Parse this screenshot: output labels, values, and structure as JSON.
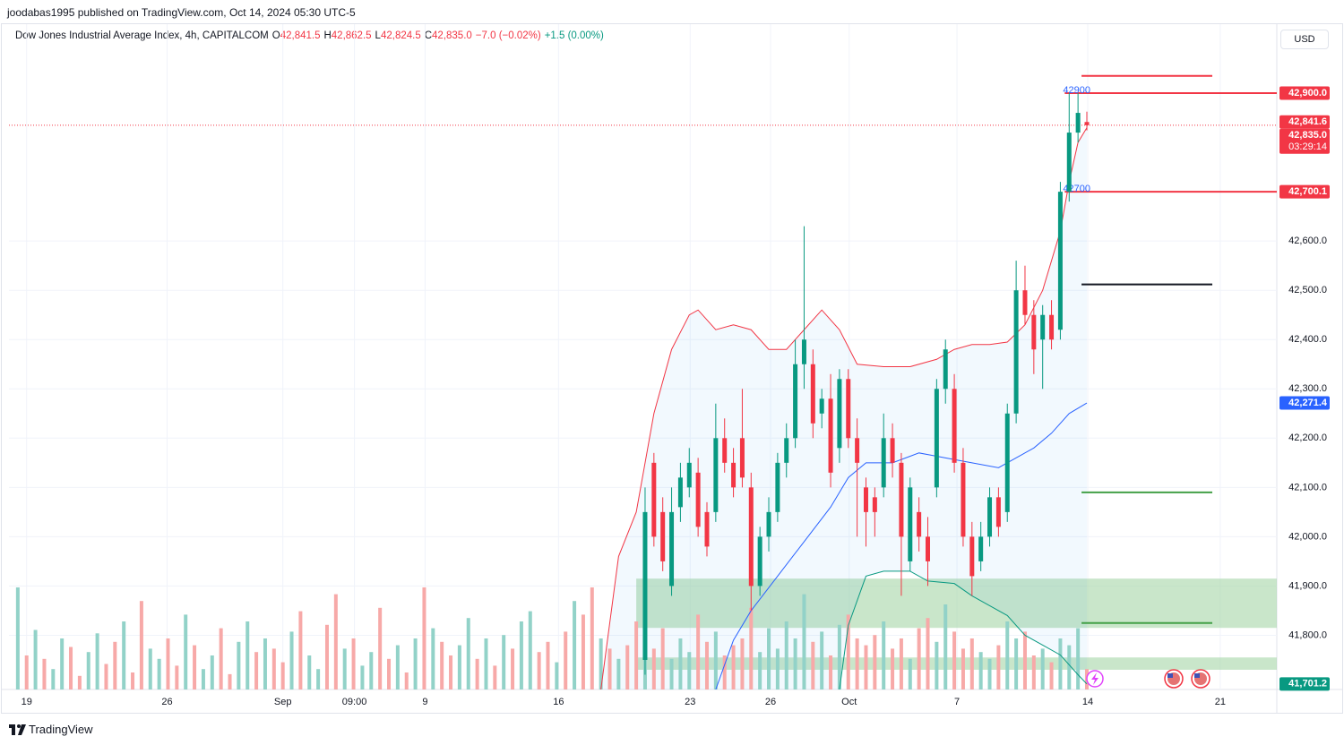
{
  "header": {
    "published": "joodabas1995 published on TradingView.com, Oct 14, 2024 05:30 UTC-5",
    "currency": "USD",
    "brand": "TradingView"
  },
  "legend": {
    "symbol": "Dow Jones Industrial Average Index, 4h, CAPITALCOM",
    "ohlc": [
      {
        "key": "O",
        "value": "42,841.5"
      },
      {
        "key": "H",
        "value": "42,862.5"
      },
      {
        "key": "L",
        "value": "42,824.5"
      },
      {
        "key": "C",
        "value": "42,835.0"
      }
    ],
    "change": "−7.0 (−0.02%)",
    "volume_change": "+1.5 (0.00%)"
  },
  "chart_data": {
    "type": "candlestick",
    "xlim": [
      -1,
      142.5
    ],
    "ylim": [
      41690,
      43040
    ],
    "xticks": [
      {
        "value": 1,
        "label": "19"
      },
      {
        "value": 16.9,
        "label": "26"
      },
      {
        "value": 30,
        "label": "Sep"
      },
      {
        "value": 38.1,
        "label": "09:00"
      },
      {
        "value": 46.1,
        "label": "9"
      },
      {
        "value": 61.2,
        "label": "16"
      },
      {
        "value": 76.1,
        "label": "23"
      },
      {
        "value": 85.2,
        "label": "26"
      },
      {
        "value": 94.1,
        "label": "Oct"
      },
      {
        "value": 106.3,
        "label": "7"
      },
      {
        "value": 121.1,
        "label": "14"
      },
      {
        "value": 136.1,
        "label": "21"
      }
    ],
    "yticks": [
      {
        "value": 41800,
        "label": "41,800.0"
      },
      {
        "value": 41900,
        "label": "41,900.0"
      },
      {
        "value": 42000,
        "label": "42,000.0"
      },
      {
        "value": 42100,
        "label": "42,100.0"
      },
      {
        "value": 42200,
        "label": "42,200.0"
      },
      {
        "value": 42300,
        "label": "42,300.0"
      },
      {
        "value": 42400,
        "label": "42,400.0"
      },
      {
        "value": 42500,
        "label": "42,500.0"
      },
      {
        "value": 42600,
        "label": "42,600.0"
      }
    ],
    "grid": true,
    "up_color": "#089981",
    "down_color": "#f23645",
    "volume_up_color": "#92d2c8",
    "volume_down_color": "#f7a9a8",
    "candles": [
      {
        "x": 71,
        "o": 41750,
        "h": 42100,
        "l": 41720,
        "c": 42050
      },
      {
        "x": 72,
        "o": 42150,
        "h": 42170,
        "l": 41980,
        "c": 42000
      },
      {
        "x": 73,
        "o": 42050,
        "h": 42080,
        "l": 41930,
        "c": 41950
      },
      {
        "x": 74,
        "o": 41900,
        "h": 42100,
        "l": 41880,
        "c": 42050
      },
      {
        "x": 75,
        "o": 42060,
        "h": 42150,
        "l": 42030,
        "c": 42120
      },
      {
        "x": 76,
        "o": 42100,
        "h": 42180,
        "l": 42080,
        "c": 42150
      },
      {
        "x": 77,
        "o": 42130,
        "h": 42160,
        "l": 42000,
        "c": 42020
      },
      {
        "x": 78,
        "o": 42050,
        "h": 42070,
        "l": 41960,
        "c": 41980
      },
      {
        "x": 79,
        "o": 42050,
        "h": 42270,
        "l": 42030,
        "c": 42200
      },
      {
        "x": 80,
        "o": 42200,
        "h": 42240,
        "l": 42130,
        "c": 42150
      },
      {
        "x": 81,
        "o": 42150,
        "h": 42180,
        "l": 42080,
        "c": 42100
      },
      {
        "x": 82,
        "o": 42200,
        "h": 42300,
        "l": 42100,
        "c": 42120
      },
      {
        "x": 83,
        "o": 42100,
        "h": 42130,
        "l": 41850,
        "c": 41900
      },
      {
        "x": 84,
        "o": 41900,
        "h": 42020,
        "l": 41880,
        "c": 42000
      },
      {
        "x": 85,
        "o": 42000,
        "h": 42080,
        "l": 41970,
        "c": 42050
      },
      {
        "x": 86,
        "o": 42050,
        "h": 42170,
        "l": 42030,
        "c": 42150
      },
      {
        "x": 87,
        "o": 42150,
        "h": 42230,
        "l": 42120,
        "c": 42200
      },
      {
        "x": 88,
        "o": 42200,
        "h": 42400,
        "l": 42180,
        "c": 42350
      },
      {
        "x": 89,
        "o": 42350,
        "h": 42630,
        "l": 42300,
        "c": 42400
      },
      {
        "x": 90,
        "o": 42350,
        "h": 42380,
        "l": 42200,
        "c": 42230
      },
      {
        "x": 91,
        "o": 42250,
        "h": 42300,
        "l": 42220,
        "c": 42280
      },
      {
        "x": 92,
        "o": 42280,
        "h": 42330,
        "l": 42100,
        "c": 42130
      },
      {
        "x": 93,
        "o": 42180,
        "h": 42340,
        "l": 42150,
        "c": 42320
      },
      {
        "x": 94,
        "o": 42320,
        "h": 42340,
        "l": 42180,
        "c": 42200
      },
      {
        "x": 95,
        "o": 42200,
        "h": 42240,
        "l": 42000,
        "c": 42150
      },
      {
        "x": 96,
        "o": 42100,
        "h": 42120,
        "l": 41980,
        "c": 42050
      },
      {
        "x": 97,
        "o": 42080,
        "h": 42100,
        "l": 42000,
        "c": 42050
      },
      {
        "x": 98,
        "o": 42100,
        "h": 42250,
        "l": 42080,
        "c": 42200
      },
      {
        "x": 99,
        "o": 42200,
        "h": 42230,
        "l": 42120,
        "c": 42150
      },
      {
        "x": 100,
        "o": 42150,
        "h": 42170,
        "l": 41880,
        "c": 42000
      },
      {
        "x": 101,
        "o": 41950,
        "h": 42120,
        "l": 41930,
        "c": 42100
      },
      {
        "x": 102,
        "o": 42050,
        "h": 42080,
        "l": 41970,
        "c": 42000
      },
      {
        "x": 103,
        "o": 42000,
        "h": 42040,
        "l": 41900,
        "c": 41950
      },
      {
        "x": 104,
        "o": 42100,
        "h": 42320,
        "l": 42080,
        "c": 42300
      },
      {
        "x": 105,
        "o": 42300,
        "h": 42400,
        "l": 42270,
        "c": 42380
      },
      {
        "x": 106,
        "o": 42300,
        "h": 42330,
        "l": 42130,
        "c": 42150
      },
      {
        "x": 107,
        "o": 42150,
        "h": 42180,
        "l": 41980,
        "c": 42000
      },
      {
        "x": 108,
        "o": 42000,
        "h": 42030,
        "l": 41880,
        "c": 41920
      },
      {
        "x": 109,
        "o": 41950,
        "h": 42030,
        "l": 41930,
        "c": 42000
      },
      {
        "x": 110,
        "o": 42000,
        "h": 42100,
        "l": 41980,
        "c": 42080
      },
      {
        "x": 111,
        "o": 42080,
        "h": 42100,
        "l": 42000,
        "c": 42020
      },
      {
        "x": 112,
        "o": 42050,
        "h": 42270,
        "l": 42030,
        "c": 42250
      },
      {
        "x": 113,
        "o": 42250,
        "h": 42560,
        "l": 42230,
        "c": 42500
      },
      {
        "x": 114,
        "o": 42500,
        "h": 42550,
        "l": 42430,
        "c": 42450
      },
      {
        "x": 115,
        "o": 42450,
        "h": 42480,
        "l": 42330,
        "c": 42380
      },
      {
        "x": 116,
        "o": 42400,
        "h": 42470,
        "l": 42300,
        "c": 42450
      },
      {
        "x": 117,
        "o": 42450,
        "h": 42480,
        "l": 42380,
        "c": 42400
      },
      {
        "x": 118,
        "o": 42420,
        "h": 42720,
        "l": 42400,
        "c": 42700
      },
      {
        "x": 119,
        "o": 42700,
        "h": 42900,
        "l": 42680,
        "c": 42820
      },
      {
        "x": 120,
        "o": 42820,
        "h": 42900,
        "l": 42800,
        "c": 42860
      },
      {
        "x": 121,
        "o": 42841.5,
        "h": 42862.5,
        "l": 42824.5,
        "c": 42835
      }
    ],
    "volume_lim": [
      0,
      100
    ],
    "volume": [
      60,
      20,
      35,
      18,
      12,
      30,
      25,
      8,
      22,
      33,
      15,
      28,
      40,
      10,
      52,
      24,
      18,
      30,
      14,
      44,
      26,
      12,
      20,
      36,
      9,
      28,
      40,
      22,
      30,
      24,
      16,
      34,
      46,
      20,
      12,
      38,
      56,
      24,
      30,
      14,
      22,
      48,
      18,
      26,
      10,
      30,
      60,
      36,
      28,
      20,
      26,
      42,
      18,
      30,
      14,
      32,
      24,
      40,
      46,
      22,
      28,
      16,
      34,
      52,
      44,
      60,
      30,
      24,
      18,
      26,
      40,
      62,
      24,
      36,
      18,
      30,
      22,
      44,
      28,
      34,
      20,
      26,
      30,
      48,
      22,
      36,
      24,
      40,
      30,
      56,
      28,
      34,
      20,
      38,
      44,
      30,
      26,
      32,
      40,
      24,
      30,
      18,
      36,
      42,
      28,
      50,
      34,
      24,
      30,
      22,
      18,
      26,
      40,
      30,
      34,
      20,
      24,
      16,
      30,
      26,
      36,
      12
    ],
    "volume_rising": [
      1,
      0,
      1,
      0,
      1,
      1,
      0,
      0,
      1,
      1,
      0,
      0,
      1,
      0,
      0,
      1,
      1,
      0,
      0,
      1,
      0,
      1,
      1,
      0,
      0,
      1,
      1,
      0,
      1,
      0,
      0,
      1,
      0,
      1,
      1,
      0,
      0,
      1,
      0,
      1,
      1,
      0,
      0,
      1,
      0,
      1,
      0,
      1,
      0,
      0,
      1,
      1,
      0,
      1,
      0,
      1,
      0,
      1,
      1,
      0,
      0,
      1,
      0,
      1,
      0,
      0,
      1,
      0,
      1,
      0,
      0,
      1,
      0,
      0,
      1,
      1,
      1,
      0,
      0,
      1,
      0,
      0,
      0,
      0,
      1,
      1,
      1,
      1,
      1,
      1,
      0,
      1,
      0,
      1,
      0,
      0,
      0,
      0,
      1,
      0,
      0,
      1,
      0,
      0,
      1,
      1,
      0,
      0,
      0,
      1,
      1,
      0,
      1,
      1,
      0,
      0,
      1,
      0,
      1,
      1,
      1,
      0
    ],
    "upper_band": {
      "color": "#f23645",
      "x": [
        66,
        68,
        70,
        72,
        74,
        76,
        77,
        79,
        81,
        83,
        85,
        87,
        89,
        91,
        93,
        95,
        98,
        101,
        104,
        106,
        108,
        110,
        112,
        114,
        116,
        118,
        119,
        120,
        121
      ],
      "values": [
        41690,
        41960,
        42050,
        42250,
        42380,
        42450,
        42460,
        42420,
        42430,
        42420,
        42380,
        42380,
        42420,
        42460,
        42420,
        42350,
        42345,
        42345,
        42360,
        42380,
        42390,
        42390,
        42395,
        42430,
        42500,
        42620,
        42720,
        42800,
        42830
      ]
    },
    "basis": {
      "color": "#2962ff",
      "x": [
        79,
        81,
        83,
        86,
        89,
        92,
        94,
        96,
        99,
        102,
        105,
        108,
        111,
        113,
        115,
        117,
        119,
        121
      ],
      "values": [
        41690,
        41790,
        41850,
        41920,
        41990,
        42060,
        42120,
        42150,
        42150,
        42170,
        42160,
        42150,
        42140,
        42160,
        42180,
        42210,
        42250,
        42271.4
      ]
    },
    "lower_band": {
      "color": "#089981",
      "x": [
        93,
        94,
        96,
        98,
        101,
        103,
        106,
        108,
        110,
        112,
        114,
        116,
        118,
        120,
        121
      ],
      "values": [
        41690,
        41820,
        41920,
        41930,
        41930,
        41910,
        41905,
        41880,
        41860,
        41840,
        41800,
        41780,
        41760,
        41720,
        41701.2
      ]
    },
    "last_price": 42835,
    "zones": [
      {
        "from": 41815,
        "to": 41915,
        "x": [
          70,
          142.5
        ],
        "color": "#a5d6a7"
      },
      {
        "from": 41730,
        "to": 41755,
        "x": [
          70,
          142.5
        ],
        "color": "#a5d6a7"
      }
    ],
    "levels": [
      {
        "value": 42935,
        "color": "#f23645",
        "x": [
          120.4,
          135.2
        ]
      },
      {
        "value": 42900,
        "color": "#f23645",
        "x": [
          118.5,
          142.5
        ],
        "label": "42900"
      },
      {
        "value": 42700,
        "color": "#f23645",
        "x": [
          118.5,
          142.5
        ],
        "label": "42700"
      },
      {
        "value": 42512,
        "color": "#131722",
        "x": [
          120.4,
          135.2
        ]
      },
      {
        "value": 42090,
        "color": "#43a047",
        "x": [
          120.4,
          135.2
        ]
      },
      {
        "value": 41825,
        "color": "#43a047",
        "x": [
          120.4,
          135.2
        ]
      }
    ],
    "price_tags": [
      {
        "value": 42900,
        "label": "42,900.0",
        "color": "#f23645"
      },
      {
        "value": 42841.6,
        "label": "42,841.6",
        "color": "#f23645"
      },
      {
        "value": 42835,
        "label": "42,835.0",
        "sublabel": "03:29:14",
        "color": "#f23645"
      },
      {
        "value": 42700.1,
        "label": "42,700.1",
        "color": "#f23645"
      },
      {
        "value": 42271.4,
        "label": "42,271.4",
        "color": "#2962ff"
      },
      {
        "value": 41701.2,
        "label": "41,701.2",
        "color": "#089981"
      }
    ]
  }
}
